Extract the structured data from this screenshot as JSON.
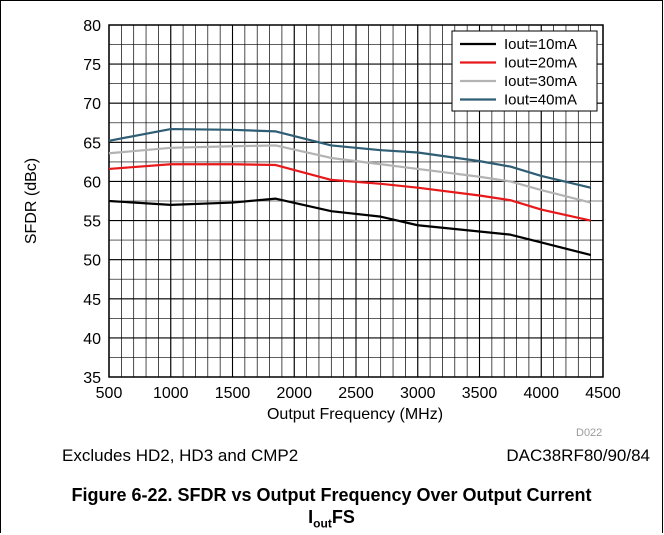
{
  "chart_data": {
    "type": "line",
    "xlabel": "Output Frequency (MHz)",
    "ylabel": "SFDR (dBc)",
    "xlim": [
      500,
      4500
    ],
    "ylim": [
      35,
      80
    ],
    "x_ticks": [
      "500",
      "1000",
      "1500",
      "2000",
      "2500",
      "3000",
      "3500",
      "4000",
      "4500"
    ],
    "y_ticks": [
      "35",
      "40",
      "45",
      "50",
      "55",
      "60",
      "65",
      "70",
      "75",
      "80"
    ],
    "x_minor_step": 100,
    "y_minor_step": 2.5,
    "grid": true,
    "legend_position": "top-right",
    "series": [
      {
        "name": "Iout=10mA",
        "color": "#000000",
        "points": [
          [
            500,
            57.5
          ],
          [
            1000,
            57.0
          ],
          [
            1500,
            57.3
          ],
          [
            1850,
            57.8
          ],
          [
            2300,
            56.2
          ],
          [
            2700,
            55.5
          ],
          [
            3000,
            54.4
          ],
          [
            3500,
            53.6
          ],
          [
            3750,
            53.2
          ],
          [
            4000,
            52.2
          ],
          [
            4400,
            50.6
          ]
        ]
      },
      {
        "name": "Iout=20mA",
        "color": "#e8191a",
        "points": [
          [
            500,
            61.6
          ],
          [
            1000,
            62.2
          ],
          [
            1500,
            62.2
          ],
          [
            1850,
            62.1
          ],
          [
            2300,
            60.2
          ],
          [
            2700,
            59.7
          ],
          [
            3000,
            59.2
          ],
          [
            3500,
            58.2
          ],
          [
            3750,
            57.6
          ],
          [
            4000,
            56.4
          ],
          [
            4400,
            55.0
          ]
        ]
      },
      {
        "name": "Iout=30mA",
        "color": "#b3b3b3",
        "points": [
          [
            500,
            63.6
          ],
          [
            1000,
            64.3
          ],
          [
            1500,
            64.5
          ],
          [
            1850,
            64.6
          ],
          [
            2300,
            63.0
          ],
          [
            2700,
            62.2
          ],
          [
            3000,
            61.6
          ],
          [
            3500,
            60.6
          ],
          [
            3750,
            60.0
          ],
          [
            4000,
            58.9
          ],
          [
            4400,
            57.3
          ]
        ]
      },
      {
        "name": "Iout=40mA",
        "color": "#2e5d74",
        "points": [
          [
            500,
            65.2
          ],
          [
            1000,
            66.7
          ],
          [
            1500,
            66.6
          ],
          [
            1850,
            66.4
          ],
          [
            2300,
            64.6
          ],
          [
            2700,
            64.0
          ],
          [
            3000,
            63.7
          ],
          [
            3500,
            62.6
          ],
          [
            3750,
            61.9
          ],
          [
            4000,
            60.7
          ],
          [
            4400,
            59.2
          ]
        ]
      }
    ]
  },
  "figure_code": "D022",
  "notes": {
    "left": "Excludes HD2, HD3 and CMP2",
    "right": "DAC38RF80/90/84"
  },
  "caption": {
    "line1": "Figure 6-22. SFDR vs Output Frequency Over Output Current",
    "line2_main": "I",
    "line2_sub": "out",
    "line2_tail": "FS"
  }
}
